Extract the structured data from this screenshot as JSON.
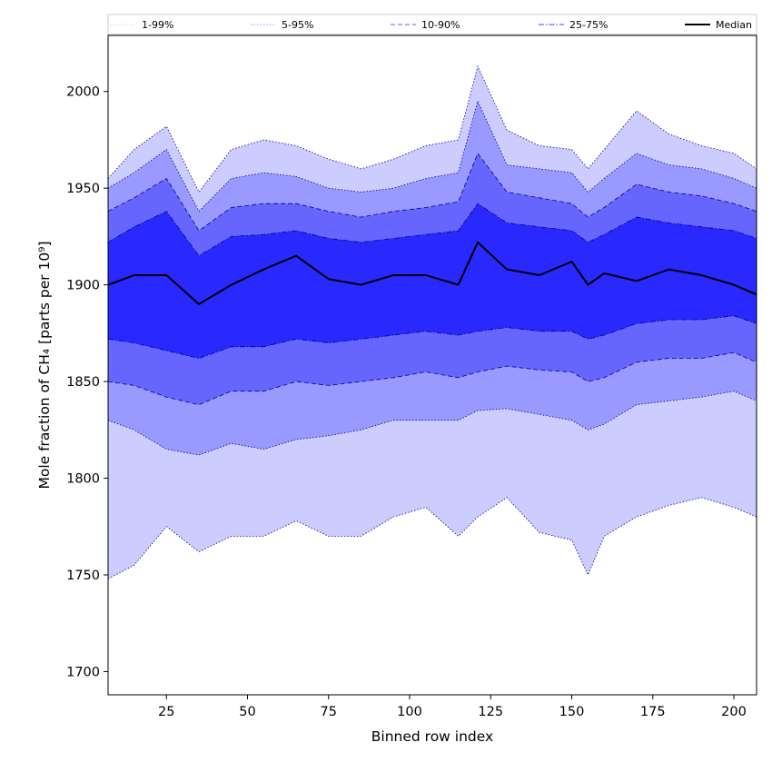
{
  "chart_data": {
    "type": "area",
    "title": "",
    "xlabel": "Binned row index",
    "ylabel": "Mole fraction of CH₄ [parts per 10⁹]",
    "xlim": [
      7,
      207
    ],
    "ylim": [
      1688,
      2029
    ],
    "xticks": [
      25,
      50,
      75,
      100,
      125,
      150,
      175,
      200
    ],
    "yticks": [
      1700,
      1750,
      1800,
      1850,
      1900,
      1950,
      2000
    ],
    "legend_position": "top",
    "grid": false,
    "x": [
      7,
      15,
      25,
      35,
      45,
      55,
      65,
      75,
      85,
      95,
      105,
      115,
      121,
      130,
      140,
      150,
      155,
      160,
      170,
      180,
      190,
      200,
      207
    ],
    "bands": [
      {
        "name": "1-99%",
        "style": "dotted",
        "color": "#ccccff",
        "lower": [
          1748,
          1755,
          1775,
          1762,
          1770,
          1770,
          1778,
          1770,
          1770,
          1780,
          1785,
          1770,
          1780,
          1790,
          1772,
          1768,
          1750,
          1770,
          1780,
          1786,
          1790,
          1785,
          1780
        ],
        "upper": [
          1955,
          1970,
          1982,
          1948,
          1970,
          1975,
          1972,
          1965,
          1960,
          1965,
          1972,
          1975,
          2013,
          1980,
          1972,
          1970,
          1960,
          1970,
          1990,
          1978,
          1972,
          1968,
          1960
        ]
      },
      {
        "name": "5-95%",
        "style": "dotted",
        "color": "#9999ff",
        "lower": [
          1830,
          1825,
          1815,
          1812,
          1818,
          1815,
          1820,
          1822,
          1825,
          1830,
          1830,
          1830,
          1835,
          1836,
          1833,
          1830,
          1825,
          1828,
          1838,
          1840,
          1842,
          1845,
          1840
        ],
        "upper": [
          1950,
          1958,
          1970,
          1938,
          1955,
          1958,
          1956,
          1950,
          1948,
          1950,
          1955,
          1958,
          1995,
          1962,
          1960,
          1958,
          1948,
          1955,
          1968,
          1962,
          1960,
          1955,
          1950
        ]
      },
      {
        "name": "10-90%",
        "style": "dashed",
        "color": "#6666ff",
        "lower": [
          1850,
          1848,
          1842,
          1838,
          1845,
          1845,
          1850,
          1848,
          1850,
          1852,
          1855,
          1852,
          1855,
          1858,
          1856,
          1855,
          1850,
          1852,
          1860,
          1862,
          1862,
          1865,
          1860
        ],
        "upper": [
          1938,
          1945,
          1955,
          1928,
          1940,
          1942,
          1942,
          1938,
          1935,
          1938,
          1940,
          1943,
          1968,
          1948,
          1945,
          1942,
          1935,
          1940,
          1952,
          1948,
          1946,
          1942,
          1938
        ]
      },
      {
        "name": "25-75%",
        "style": "dashdot",
        "color": "#2828ff",
        "lower": [
          1872,
          1870,
          1866,
          1862,
          1868,
          1868,
          1872,
          1870,
          1872,
          1874,
          1876,
          1874,
          1876,
          1878,
          1876,
          1876,
          1872,
          1874,
          1880,
          1882,
          1882,
          1884,
          1880
        ],
        "upper": [
          1922,
          1930,
          1938,
          1915,
          1925,
          1926,
          1928,
          1924,
          1922,
          1924,
          1926,
          1928,
          1942,
          1932,
          1930,
          1928,
          1922,
          1926,
          1935,
          1932,
          1930,
          1928,
          1924
        ]
      }
    ],
    "series": [
      {
        "name": "Median",
        "style": "solid",
        "color": "#000000",
        "values": [
          1900,
          1905,
          1905,
          1890,
          1900,
          1908,
          1915,
          1903,
          1900,
          1905,
          1905,
          1900,
          1922,
          1908,
          1905,
          1912,
          1900,
          1906,
          1902,
          1908,
          1905,
          1900,
          1895
        ]
      }
    ]
  }
}
